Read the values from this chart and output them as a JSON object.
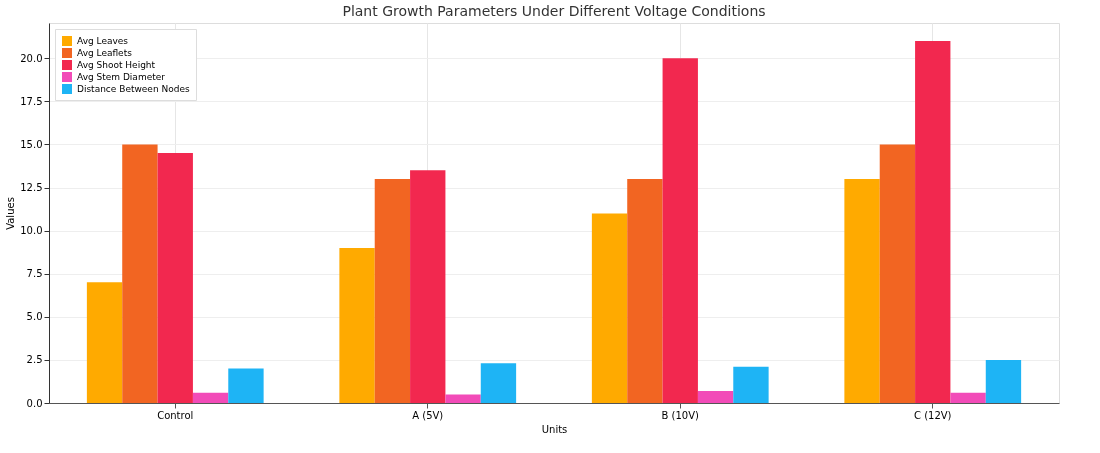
{
  "chart_data": {
    "type": "bar",
    "title": "Plant Growth Parameters Under Different Voltage Conditions",
    "xlabel": "Units",
    "ylabel": "Values",
    "categories": [
      "Control",
      "A (5V)",
      "B (10V)",
      "C (12V)"
    ],
    "series": [
      {
        "name": "Avg Leaves",
        "color": "#ffaa00",
        "values": [
          7,
          9,
          11,
          13
        ]
      },
      {
        "name": "Avg Leaflets",
        "color": "#f26522",
        "values": [
          15,
          13,
          13,
          15
        ]
      },
      {
        "name": "Avg Shoot Height",
        "color": "#f2284f",
        "values": [
          14.5,
          13.5,
          20,
          21
        ]
      },
      {
        "name": "Avg Stem Diameter",
        "color": "#f24bb8",
        "values": [
          0.6,
          0.5,
          0.7,
          0.6
        ]
      },
      {
        "name": "Distance Between Nodes",
        "color": "#1eb4f5",
        "values": [
          2.0,
          2.3,
          2.1,
          2.5
        ]
      }
    ],
    "ylim": [
      0,
      22.05
    ],
    "yticks": [
      {
        "value": 0,
        "label": "0.0"
      },
      {
        "value": 2.5,
        "label": "2.5"
      },
      {
        "value": 5,
        "label": "5.0"
      },
      {
        "value": 7.5,
        "label": "7.5"
      },
      {
        "value": 10,
        "label": "10.0"
      },
      {
        "value": 12.5,
        "label": "12.5"
      },
      {
        "value": 15,
        "label": "15.0"
      },
      {
        "value": 17.5,
        "label": "17.5"
      },
      {
        "value": 20,
        "label": "20.0"
      }
    ],
    "grid": true,
    "legend": "top left"
  }
}
